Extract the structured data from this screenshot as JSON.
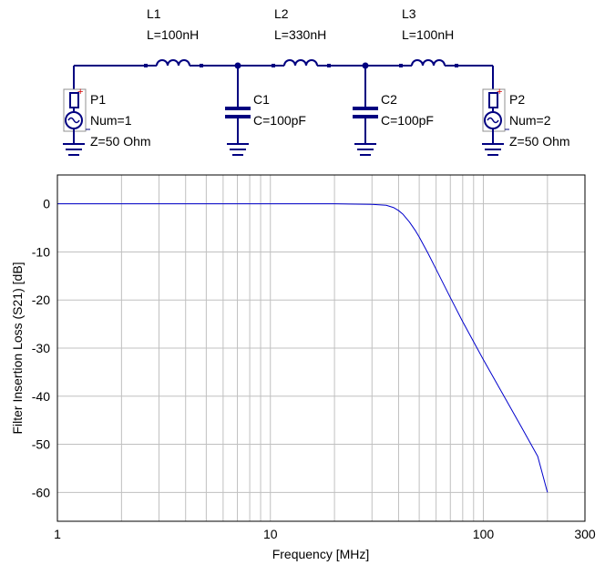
{
  "schematic": {
    "inductors": [
      {
        "name": "L1",
        "value": "L=100nH"
      },
      {
        "name": "L2",
        "value": "L=330nH"
      },
      {
        "name": "L3",
        "value": "L=100nH"
      }
    ],
    "capacitors": [
      {
        "name": "C1",
        "value": "C=100pF"
      },
      {
        "name": "C2",
        "value": "C=100pF"
      }
    ],
    "ports": [
      {
        "name": "P1",
        "num": "Num=1",
        "z": "Z=50 Ohm",
        "polarity": "+"
      },
      {
        "name": "P2",
        "num": "Num=2",
        "z": "Z=50 Ohm",
        "polarity": "+"
      }
    ],
    "colors": {
      "wire": "#000080",
      "port_plus": "#d00000",
      "port_frame": "#909090"
    }
  },
  "chart_data": {
    "type": "line",
    "xlabel": "Frequency [MHz]",
    "ylabel": "Filter Insertion Loss (S21) [dB]",
    "xscale": "log",
    "xlim": [
      1,
      300
    ],
    "ylim": [
      -66,
      6
    ],
    "xticks": [
      1,
      10,
      100,
      300
    ],
    "xtick_labels": [
      "1",
      "10",
      "100",
      "300"
    ],
    "yticks": [
      0,
      -10,
      -20,
      -30,
      -40,
      -50,
      -60
    ],
    "ytick_labels": [
      "0",
      "-10",
      "-20",
      "-30",
      "-40",
      "-50",
      "-60"
    ],
    "grid": true,
    "line_color": "#0000cc",
    "series": [
      {
        "x": [
          1,
          5,
          10,
          20,
          30,
          35,
          38,
          40,
          42,
          45,
          48,
          50,
          55,
          60,
          70,
          80,
          100,
          120,
          150,
          180,
          200
        ],
        "y": [
          0,
          0,
          0,
          0,
          -0.1,
          -0.3,
          -0.8,
          -1.4,
          -2.2,
          -3.8,
          -5.6,
          -6.9,
          -10.3,
          -13.6,
          -19.5,
          -24.5,
          -32.4,
          -38.6,
          -46.2,
          -52.5,
          -60
        ]
      }
    ]
  }
}
